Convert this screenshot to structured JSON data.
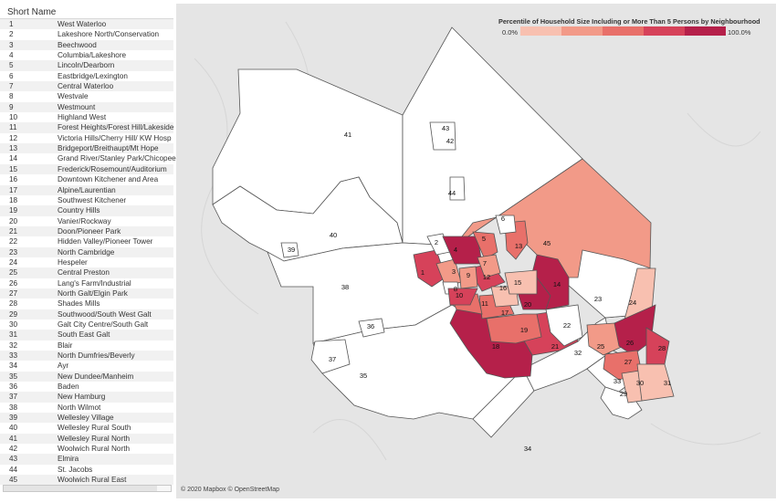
{
  "table": {
    "header": "Short Name",
    "rows": [
      {
        "num": "1",
        "name": "West Waterloo"
      },
      {
        "num": "2",
        "name": "Lakeshore North/Conservation"
      },
      {
        "num": "3",
        "name": "Beechwood"
      },
      {
        "num": "4",
        "name": "Columbia/Lakeshore"
      },
      {
        "num": "5",
        "name": "Lincoln/Dearborn"
      },
      {
        "num": "6",
        "name": "Eastbridge/Lexington"
      },
      {
        "num": "7",
        "name": "Central Waterloo"
      },
      {
        "num": "8",
        "name": "Westvale"
      },
      {
        "num": "9",
        "name": "Westmount"
      },
      {
        "num": "10",
        "name": "Highland West"
      },
      {
        "num": "11",
        "name": "Forest Heights/Forest Hill/Lakeside"
      },
      {
        "num": "12",
        "name": "Victoria Hills/Cherry Hill/ KW Hosp"
      },
      {
        "num": "13",
        "name": "Bridgeport/Breithaupt/Mt Hope"
      },
      {
        "num": "14",
        "name": "Grand River/Stanley Park/Chicopee"
      },
      {
        "num": "15",
        "name": "Frederick/Rosemount/Auditorium"
      },
      {
        "num": "16",
        "name": "Downtown Kitchener and Area"
      },
      {
        "num": "17",
        "name": "Alpine/Laurentian"
      },
      {
        "num": "18",
        "name": "Southwest Kitchener"
      },
      {
        "num": "19",
        "name": "Country Hills"
      },
      {
        "num": "20",
        "name": "Vanier/Rockway"
      },
      {
        "num": "21",
        "name": "Doon/Pioneer Park"
      },
      {
        "num": "22",
        "name": "Hidden Valley/Pioneer Tower"
      },
      {
        "num": "23",
        "name": "North Cambridge"
      },
      {
        "num": "24",
        "name": "Hespeler"
      },
      {
        "num": "25",
        "name": "Central Preston"
      },
      {
        "num": "26",
        "name": "Lang's Farm/Industrial"
      },
      {
        "num": "27",
        "name": "North Galt/Elgin Park"
      },
      {
        "num": "28",
        "name": "Shades Mills"
      },
      {
        "num": "29",
        "name": "Southwood/South West Galt"
      },
      {
        "num": "30",
        "name": "Galt City Centre/South Galt"
      },
      {
        "num": "31",
        "name": "South East Galt"
      },
      {
        "num": "32",
        "name": "Blair"
      },
      {
        "num": "33",
        "name": "North Dumfries/Beverly"
      },
      {
        "num": "34",
        "name": "Ayr"
      },
      {
        "num": "35",
        "name": "New Dundee/Manheim"
      },
      {
        "num": "36",
        "name": "Baden"
      },
      {
        "num": "37",
        "name": "New Hamburg"
      },
      {
        "num": "38",
        "name": "North Wilmot"
      },
      {
        "num": "39",
        "name": "Wellesley Village"
      },
      {
        "num": "40",
        "name": "Wellesley Rural South"
      },
      {
        "num": "41",
        "name": "Wellesley Rural North"
      },
      {
        "num": "42",
        "name": "Woolwich Rural North"
      },
      {
        "num": "43",
        "name": "Elmira"
      },
      {
        "num": "44",
        "name": "St. Jacobs"
      },
      {
        "num": "45",
        "name": "Woolwich Rural East"
      }
    ]
  },
  "legend": {
    "title": "Percentile of Household Size Including or More Than 5 Persons by Neighbourhood",
    "min_label": "0.0%",
    "max_label": "100.0%",
    "colors": [
      "#f8c0b0",
      "#f29a88",
      "#e8706a",
      "#d6425a",
      "#b5204a"
    ]
  },
  "map": {
    "background": "#e5e5e5",
    "no_data_fill": "#ffffff",
    "neighbourhood_labels": [
      "1",
      "2",
      "3",
      "4",
      "5",
      "6",
      "7",
      "8",
      "9",
      "10",
      "11",
      "12",
      "13",
      "14",
      "15",
      "16",
      "17",
      "18",
      "19",
      "20",
      "21",
      "22",
      "23",
      "24",
      "25",
      "26",
      "27",
      "28",
      "29",
      "30",
      "31",
      "32",
      "33",
      "34",
      "35",
      "36",
      "37",
      "38",
      "39",
      "40",
      "41",
      "42",
      "43",
      "44",
      "45"
    ],
    "percentile_class": {
      "1": "c3",
      "2": "white",
      "3": "c1",
      "4": "c4",
      "5": "c2",
      "6": "white",
      "7": "c1",
      "8": "white",
      "9": "c1",
      "10": "c3",
      "11": "c2",
      "12": "c3",
      "13": "c2",
      "14": "c4",
      "15": "c0",
      "16": "c0",
      "17": "c2",
      "18": "c4",
      "19": "c2",
      "20": "c4",
      "21": "c3",
      "22": "white",
      "23": "white",
      "24": "c0",
      "25": "c1",
      "26": "c4",
      "27": "c2",
      "28": "c3",
      "29": "white",
      "30": "c0",
      "31": "c0",
      "32": "white",
      "33": "white",
      "34": "white",
      "35": "white",
      "36": "white",
      "37": "white",
      "38": "white",
      "39": "white",
      "40": "white",
      "41": "white",
      "42": "white",
      "43": "white",
      "44": "white",
      "45": "c1"
    }
  },
  "attribution": "© 2020 Mapbox © OpenStreetMap"
}
